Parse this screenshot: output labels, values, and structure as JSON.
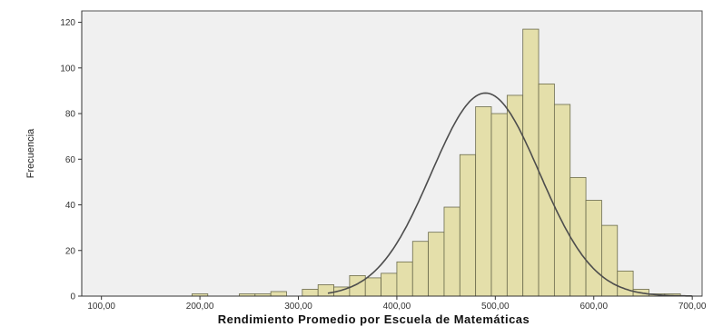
{
  "chart_data": {
    "type": "bar",
    "title": "",
    "xlabel": "Rendimiento Promedio por Escuela de Matemáticas",
    "ylabel": "Frecuencia",
    "xlim": [
      80,
      710
    ],
    "ylim": [
      0,
      125
    ],
    "x_ticks": [
      100,
      200,
      300,
      400,
      500,
      600,
      700
    ],
    "x_tick_labels": [
      "100,00",
      "200,00",
      "300,00",
      "400,00",
      "500,00",
      "600,00",
      "700,00"
    ],
    "y_ticks": [
      0,
      20,
      40,
      60,
      80,
      100,
      120
    ],
    "y_tick_labels": [
      "0",
      "20",
      "40",
      "60",
      "80",
      "100",
      "120"
    ],
    "bin_width": 16,
    "bins_start": [
      192,
      240,
      256,
      272,
      304,
      320,
      336,
      352,
      368,
      384,
      400,
      416,
      432,
      448,
      464,
      480,
      496,
      512,
      528,
      544,
      560,
      576,
      592,
      608,
      624,
      640,
      656,
      672
    ],
    "values": [
      1,
      1,
      1,
      2,
      3,
      5,
      4,
      9,
      8,
      10,
      15,
      24,
      28,
      39,
      62,
      83,
      80,
      88,
      117,
      93,
      84,
      52,
      42,
      31,
      11,
      3,
      1,
      1
    ],
    "normal_curve": {
      "mean": 490,
      "std": 54.9,
      "peak": 89
    },
    "bar_color": "#e4dfaa",
    "bar_edge_color": "#6b6b4d",
    "curve_color": "#4d4d4d",
    "plot_background": "#f0f0f0",
    "grid": false
  }
}
